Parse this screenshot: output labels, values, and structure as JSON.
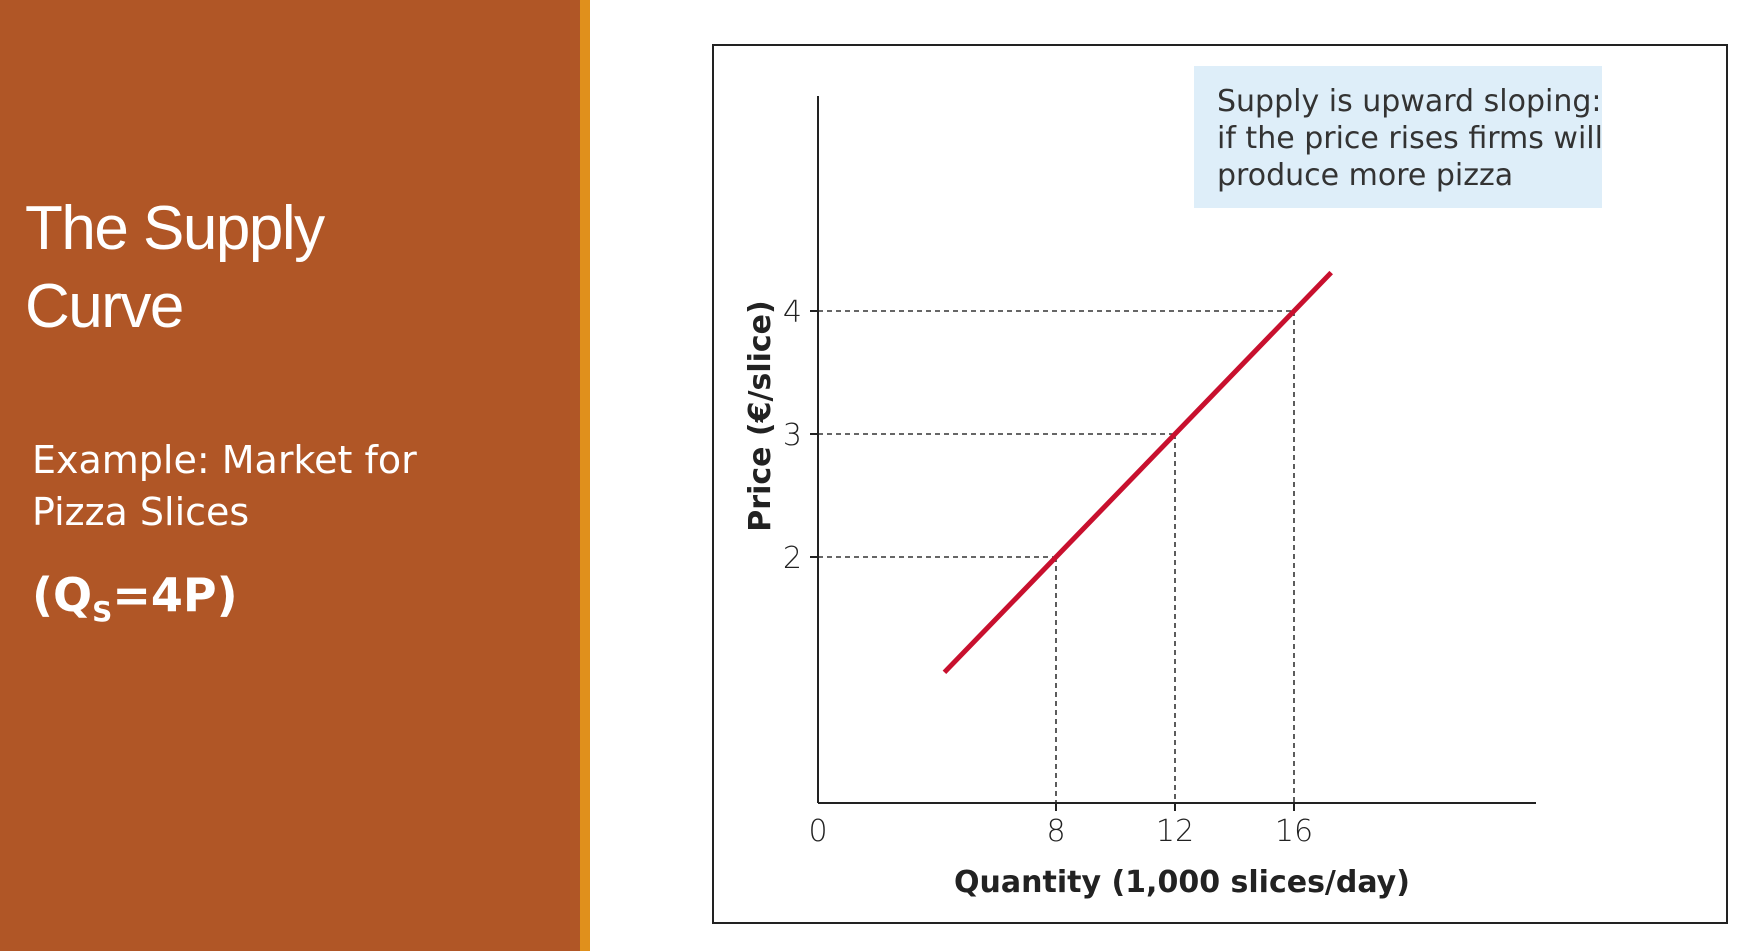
{
  "slide": {
    "title_lines": [
      "The Supply",
      "Curve"
    ],
    "example_lines": [
      "Example: Market for",
      "Pizza Slices"
    ],
    "formula": {
      "open": "(Q",
      "subscript": "S",
      "rest": "=4P)"
    }
  },
  "colors": {
    "panel": "#b05626",
    "accent": "#e0901c",
    "supply_line": "#c8102e",
    "callout_bg": "#deeef9"
  },
  "chart_data": {
    "type": "line",
    "xlabel": "Quantity (1,000 slices/day)",
    "ylabel": "Price (€/slice)",
    "origin_label": "0",
    "x_ticks": [
      8,
      12,
      16
    ],
    "y_ticks": [
      2,
      3,
      4
    ],
    "guide_lines": "dashed",
    "series": [
      {
        "x": [
          4.25,
          17.25
        ],
        "y": [
          1.0625,
          4.3125
        ]
      }
    ],
    "highlighted_points": [
      {
        "x": 8,
        "y": 2
      },
      {
        "x": 12,
        "y": 3
      },
      {
        "x": 16,
        "y": 4
      }
    ],
    "annotation": {
      "lines": [
        "Supply is upward sloping:",
        "if the price rises firms will",
        "produce more pizza"
      ],
      "placement": "top-right"
    }
  }
}
